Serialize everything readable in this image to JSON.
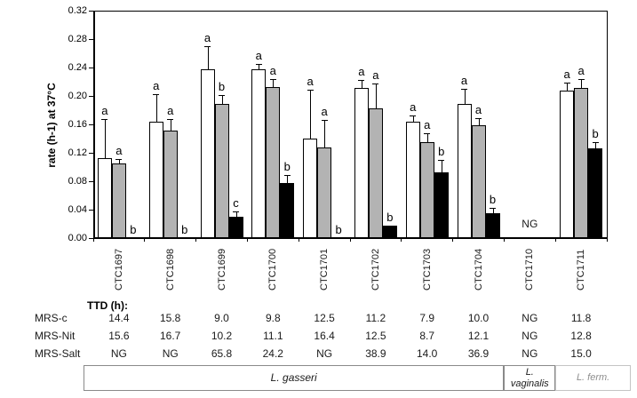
{
  "chart_data": {
    "type": "bar",
    "title": "",
    "ylabel": "rate (h-1) at 37°C",
    "ylim": [
      0,
      0.32
    ],
    "ytick_step": 0.04,
    "grid": false,
    "legend": "none (series identified by table row labels)",
    "categories": [
      "CTC1697",
      "CTC1698",
      "CTC1699",
      "CTC1700",
      "CTC1701",
      "CTC1702",
      "CTC1703",
      "CTC1704",
      "CTC1710",
      "CTC1711"
    ],
    "series": [
      {
        "name": "MRS-c",
        "color": "#ffffff",
        "values": [
          0.113,
          0.164,
          0.238,
          0.237,
          0.14,
          0.211,
          0.164,
          0.189,
          null,
          0.207
        ],
        "err_top": [
          0.168,
          0.202,
          0.27,
          0.245,
          0.209,
          0.222,
          0.172,
          0.21,
          null,
          0.219
        ],
        "letters": [
          "a",
          "a",
          "a",
          "a",
          "a",
          "a",
          "a",
          "a",
          "",
          "a"
        ]
      },
      {
        "name": "MRS-Nit",
        "color": "#b3b3b3",
        "values": [
          0.105,
          0.151,
          0.189,
          0.213,
          0.127,
          0.182,
          0.135,
          0.159,
          null,
          0.211
        ],
        "err_top": [
          0.111,
          0.168,
          0.201,
          0.224,
          0.166,
          0.218,
          0.148,
          0.169,
          null,
          0.224
        ],
        "letters": [
          "a",
          "a",
          "b",
          "a",
          "a",
          "a",
          "a",
          "a",
          "",
          "a"
        ]
      },
      {
        "name": "MRS-Salt",
        "color": "#000000",
        "values": [
          0,
          0,
          0.03,
          0.077,
          0,
          0.018,
          0.093,
          0.035,
          null,
          0.126
        ],
        "err_top": [
          null,
          null,
          0.037,
          0.089,
          null,
          null,
          0.11,
          0.043,
          null,
          0.135
        ],
        "letters": [
          "b",
          "b",
          "c",
          "b",
          "b",
          "b",
          "b",
          "b",
          "",
          "b"
        ]
      }
    ],
    "annotations": [
      {
        "text": "NG",
        "category": "CTC1710",
        "category_index": 8,
        "y": 0.02
      }
    ]
  },
  "table": {
    "header": "TTD (h):",
    "row_labels": [
      "MRS-c",
      "MRS-Nit",
      "MRS-Salt"
    ],
    "rows": [
      [
        "14.4",
        "15.8",
        "9.0",
        "9.8",
        "12.5",
        "11.2",
        "7.9",
        "10.0",
        "NG",
        "11.8"
      ],
      [
        "15.6",
        "16.7",
        "10.2",
        "11.1",
        "16.4",
        "12.5",
        "8.7",
        "12.1",
        "NG",
        "12.8"
      ],
      [
        "NG",
        "NG",
        "65.8",
        "24.2",
        "NG",
        "38.9",
        "14.0",
        "36.9",
        "NG",
        "15.0"
      ]
    ]
  },
  "species_groups": [
    {
      "lines": [
        "L. gasseri"
      ],
      "start": 0,
      "end": 7,
      "faded": false
    },
    {
      "lines": [
        "L.",
        "vaginalis"
      ],
      "start": 8,
      "end": 8,
      "faded": false
    },
    {
      "lines": [
        "L. ferm."
      ],
      "start": 9,
      "end": 9,
      "faded": true
    }
  ]
}
